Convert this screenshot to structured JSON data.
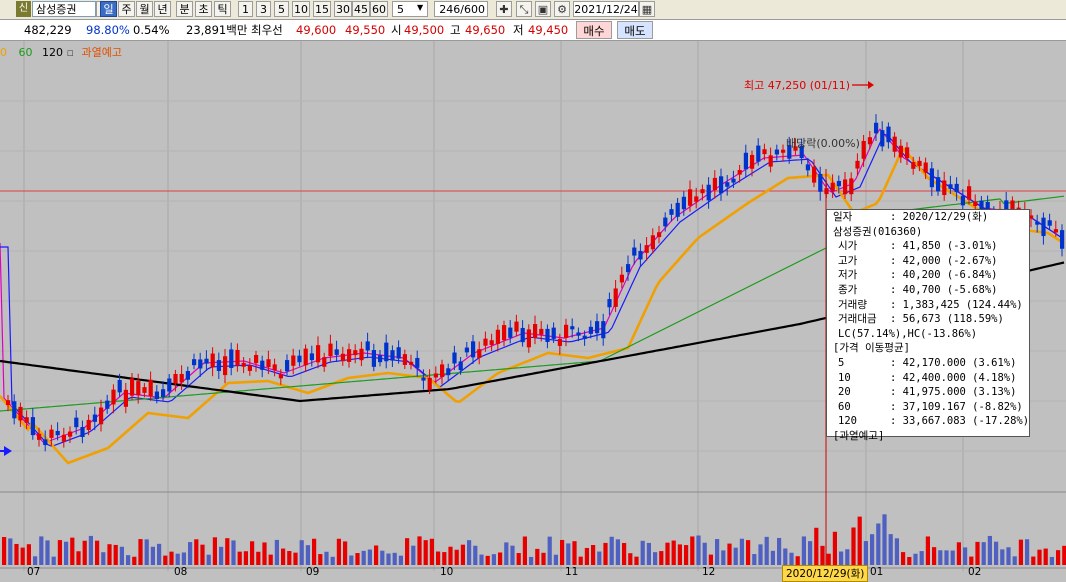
{
  "toolbar": {
    "badge": "신",
    "stock_name": "삼성증권",
    "period_buttons": [
      "일",
      "주",
      "월",
      "년",
      "분",
      "초",
      "틱"
    ],
    "minute_buttons": [
      "1",
      "3",
      "5",
      "10",
      "15",
      "30",
      "45",
      "60"
    ],
    "unit_value": "5",
    "count_value": "246",
    "count_total": "/600",
    "date": "2021/12/24"
  },
  "quote": {
    "volume": "482,229",
    "volume_ratio": "98.80%",
    "turnover": "0.54%",
    "amount": "23,891백만",
    "best_label": "최우선",
    "best_ask": "49,600",
    "best_bid": "49,550",
    "open_label": "시",
    "open": "49,500",
    "high_label": "고",
    "high": "49,650",
    "low_label": "저",
    "low": "49,450",
    "buy_label": "매수",
    "sell_label": "매도"
  },
  "legend": {
    "ma_60": "60",
    "ma_120": "120",
    "ma_120_marker": "▫",
    "warning": "과열예고",
    "leading_zero": "0"
  },
  "annotations": {
    "high_label": "최고 47,250 (01/11)",
    "dividend_label": "배당락(0.00%)"
  },
  "colors": {
    "up": "#e60000",
    "down": "#0033cc",
    "ma5": "#e000c0",
    "ma10": "#1a1aff",
    "ma20": "#f0a000",
    "ma60": "#1a9a1a",
    "ma120": "#000000",
    "background": "#c0c0c0"
  },
  "tooltip": {
    "date_label": "일자",
    "date_value": ": 2020/12/29(화)",
    "stock": "삼성증권(016360)",
    "rows": [
      {
        "k": "시가",
        "v": ": 41,850 (-3.01%)"
      },
      {
        "k": "고가",
        "v": ": 42,000 (-2.67%)"
      },
      {
        "k": "저가",
        "v": ": 40,200 (-6.84%)"
      },
      {
        "k": "종가",
        "v": ": 40,700 (-5.68%)"
      },
      {
        "k": "거래량",
        "v": ": 1,383,425 (124.44%)"
      },
      {
        "k": "거래대금",
        "v": ": 56,673 (118.59%)"
      }
    ],
    "lc_hc": "LC(57.14%),HC(-13.86%)",
    "ma_header": "[가격 이동평균]",
    "ma_rows": [
      {
        "k": "5",
        "v": ": 42,170.000 (3.61%)"
      },
      {
        "k": "10",
        "v": ": 42,400.000 (4.18%)"
      },
      {
        "k": "20",
        "v": ": 41,975.000 (3.13%)"
      },
      {
        "k": "60",
        "v": ": 37,109.167 (-8.82%)"
      },
      {
        "k": "120",
        "v": ": 33,667.083 (-17.28%)"
      }
    ],
    "warning": "[과열예고]"
  },
  "x_axis": {
    "months": [
      "07",
      "08",
      "09",
      "10",
      "11",
      "12",
      "01",
      "02"
    ],
    "cursor_date": "2020/12/29(화)"
  },
  "chart_data": {
    "type": "candlestick",
    "title": "",
    "series": [
      {
        "name": "삼성증권"
      }
    ],
    "moving_averages": [
      "5",
      "10",
      "20",
      "60",
      "120"
    ],
    "highlight": {
      "date": "2020/12/29",
      "open": 41850,
      "high": 42000,
      "low": 40200,
      "close": 40700,
      "volume": 1383425
    },
    "period_high": {
      "value": 47250,
      "date": "01/11"
    },
    "x_categories": [
      "07",
      "08",
      "09",
      "10",
      "11",
      "12",
      "01",
      "02"
    ]
  }
}
